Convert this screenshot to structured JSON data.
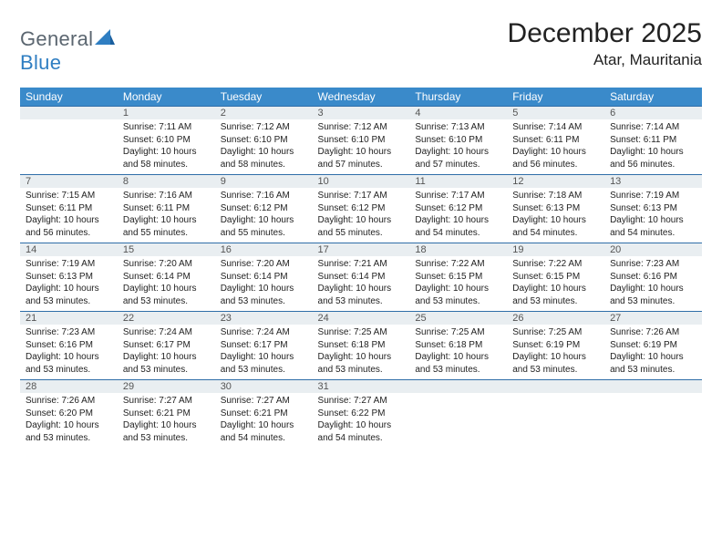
{
  "brand": {
    "part1": "General",
    "part2": "Blue"
  },
  "title": "December 2025",
  "location": "Atar, Mauritania",
  "colors": {
    "header_bg": "#3a8aca",
    "header_text": "#ffffff",
    "daynum_bg": "#e9eef1",
    "border": "#2f6ea8",
    "logo_gray": "#5b6670",
    "logo_blue": "#2f7ec2"
  },
  "weekdays": [
    "Sunday",
    "Monday",
    "Tuesday",
    "Wednesday",
    "Thursday",
    "Friday",
    "Saturday"
  ],
  "weeks": [
    {
      "nums": [
        "",
        "1",
        "2",
        "3",
        "4",
        "5",
        "6"
      ],
      "cells": [
        {},
        {
          "sr": "Sunrise: 7:11 AM",
          "ss": "Sunset: 6:10 PM",
          "dl": "Daylight: 10 hours and 58 minutes."
        },
        {
          "sr": "Sunrise: 7:12 AM",
          "ss": "Sunset: 6:10 PM",
          "dl": "Daylight: 10 hours and 58 minutes."
        },
        {
          "sr": "Sunrise: 7:12 AM",
          "ss": "Sunset: 6:10 PM",
          "dl": "Daylight: 10 hours and 57 minutes."
        },
        {
          "sr": "Sunrise: 7:13 AM",
          "ss": "Sunset: 6:10 PM",
          "dl": "Daylight: 10 hours and 57 minutes."
        },
        {
          "sr": "Sunrise: 7:14 AM",
          "ss": "Sunset: 6:11 PM",
          "dl": "Daylight: 10 hours and 56 minutes."
        },
        {
          "sr": "Sunrise: 7:14 AM",
          "ss": "Sunset: 6:11 PM",
          "dl": "Daylight: 10 hours and 56 minutes."
        }
      ]
    },
    {
      "nums": [
        "7",
        "8",
        "9",
        "10",
        "11",
        "12",
        "13"
      ],
      "cells": [
        {
          "sr": "Sunrise: 7:15 AM",
          "ss": "Sunset: 6:11 PM",
          "dl": "Daylight: 10 hours and 56 minutes."
        },
        {
          "sr": "Sunrise: 7:16 AM",
          "ss": "Sunset: 6:11 PM",
          "dl": "Daylight: 10 hours and 55 minutes."
        },
        {
          "sr": "Sunrise: 7:16 AM",
          "ss": "Sunset: 6:12 PM",
          "dl": "Daylight: 10 hours and 55 minutes."
        },
        {
          "sr": "Sunrise: 7:17 AM",
          "ss": "Sunset: 6:12 PM",
          "dl": "Daylight: 10 hours and 55 minutes."
        },
        {
          "sr": "Sunrise: 7:17 AM",
          "ss": "Sunset: 6:12 PM",
          "dl": "Daylight: 10 hours and 54 minutes."
        },
        {
          "sr": "Sunrise: 7:18 AM",
          "ss": "Sunset: 6:13 PM",
          "dl": "Daylight: 10 hours and 54 minutes."
        },
        {
          "sr": "Sunrise: 7:19 AM",
          "ss": "Sunset: 6:13 PM",
          "dl": "Daylight: 10 hours and 54 minutes."
        }
      ]
    },
    {
      "nums": [
        "14",
        "15",
        "16",
        "17",
        "18",
        "19",
        "20"
      ],
      "cells": [
        {
          "sr": "Sunrise: 7:19 AM",
          "ss": "Sunset: 6:13 PM",
          "dl": "Daylight: 10 hours and 53 minutes."
        },
        {
          "sr": "Sunrise: 7:20 AM",
          "ss": "Sunset: 6:14 PM",
          "dl": "Daylight: 10 hours and 53 minutes."
        },
        {
          "sr": "Sunrise: 7:20 AM",
          "ss": "Sunset: 6:14 PM",
          "dl": "Daylight: 10 hours and 53 minutes."
        },
        {
          "sr": "Sunrise: 7:21 AM",
          "ss": "Sunset: 6:14 PM",
          "dl": "Daylight: 10 hours and 53 minutes."
        },
        {
          "sr": "Sunrise: 7:22 AM",
          "ss": "Sunset: 6:15 PM",
          "dl": "Daylight: 10 hours and 53 minutes."
        },
        {
          "sr": "Sunrise: 7:22 AM",
          "ss": "Sunset: 6:15 PM",
          "dl": "Daylight: 10 hours and 53 minutes."
        },
        {
          "sr": "Sunrise: 7:23 AM",
          "ss": "Sunset: 6:16 PM",
          "dl": "Daylight: 10 hours and 53 minutes."
        }
      ]
    },
    {
      "nums": [
        "21",
        "22",
        "23",
        "24",
        "25",
        "26",
        "27"
      ],
      "cells": [
        {
          "sr": "Sunrise: 7:23 AM",
          "ss": "Sunset: 6:16 PM",
          "dl": "Daylight: 10 hours and 53 minutes."
        },
        {
          "sr": "Sunrise: 7:24 AM",
          "ss": "Sunset: 6:17 PM",
          "dl": "Daylight: 10 hours and 53 minutes."
        },
        {
          "sr": "Sunrise: 7:24 AM",
          "ss": "Sunset: 6:17 PM",
          "dl": "Daylight: 10 hours and 53 minutes."
        },
        {
          "sr": "Sunrise: 7:25 AM",
          "ss": "Sunset: 6:18 PM",
          "dl": "Daylight: 10 hours and 53 minutes."
        },
        {
          "sr": "Sunrise: 7:25 AM",
          "ss": "Sunset: 6:18 PM",
          "dl": "Daylight: 10 hours and 53 minutes."
        },
        {
          "sr": "Sunrise: 7:25 AM",
          "ss": "Sunset: 6:19 PM",
          "dl": "Daylight: 10 hours and 53 minutes."
        },
        {
          "sr": "Sunrise: 7:26 AM",
          "ss": "Sunset: 6:19 PM",
          "dl": "Daylight: 10 hours and 53 minutes."
        }
      ]
    },
    {
      "nums": [
        "28",
        "29",
        "30",
        "31",
        "",
        "",
        ""
      ],
      "cells": [
        {
          "sr": "Sunrise: 7:26 AM",
          "ss": "Sunset: 6:20 PM",
          "dl": "Daylight: 10 hours and 53 minutes."
        },
        {
          "sr": "Sunrise: 7:27 AM",
          "ss": "Sunset: 6:21 PM",
          "dl": "Daylight: 10 hours and 53 minutes."
        },
        {
          "sr": "Sunrise: 7:27 AM",
          "ss": "Sunset: 6:21 PM",
          "dl": "Daylight: 10 hours and 54 minutes."
        },
        {
          "sr": "Sunrise: 7:27 AM",
          "ss": "Sunset: 6:22 PM",
          "dl": "Daylight: 10 hours and 54 minutes."
        },
        {},
        {},
        {}
      ]
    }
  ]
}
